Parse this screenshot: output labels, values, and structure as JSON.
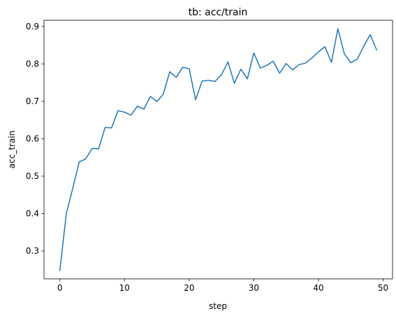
{
  "chart_data": {
    "type": "line",
    "title": "tb: acc/train",
    "xlabel": "step",
    "ylabel": "acc_train",
    "xlim": [
      -2.45,
      51.45
    ],
    "ylim": [
      0.2255,
      0.9165
    ],
    "xticks": [
      0,
      10,
      20,
      30,
      40,
      50
    ],
    "yticks": [
      0.3,
      0.4,
      0.5,
      0.6,
      0.7,
      0.8,
      0.9
    ],
    "grid": false,
    "series": [
      {
        "color": "#1f77b4",
        "x": [
          0,
          1,
          2,
          3,
          4,
          5,
          6,
          7,
          8,
          9,
          10,
          11,
          12,
          13,
          14,
          15,
          16,
          17,
          18,
          19,
          20,
          21,
          22,
          23,
          24,
          25,
          26,
          27,
          28,
          29,
          30,
          31,
          32,
          33,
          34,
          35,
          36,
          37,
          38,
          39,
          40,
          41,
          42,
          43,
          44,
          45,
          46,
          47,
          48,
          49
        ],
        "y": [
          0.248,
          0.4,
          0.468,
          0.538,
          0.546,
          0.574,
          0.573,
          0.63,
          0.629,
          0.675,
          0.671,
          0.663,
          0.687,
          0.679,
          0.713,
          0.699,
          0.719,
          0.779,
          0.764,
          0.791,
          0.787,
          0.704,
          0.754,
          0.756,
          0.753,
          0.771,
          0.805,
          0.748,
          0.786,
          0.76,
          0.829,
          0.789,
          0.796,
          0.807,
          0.775,
          0.801,
          0.784,
          0.798,
          0.802,
          0.816,
          0.832,
          0.846,
          0.804,
          0.894,
          0.827,
          0.803,
          0.813,
          0.847,
          0.878,
          0.837
        ]
      }
    ]
  }
}
